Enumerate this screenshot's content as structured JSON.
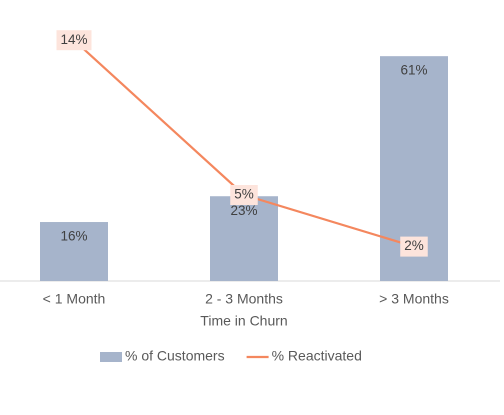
{
  "chart_data": {
    "type": "bar-line",
    "categories": [
      "< 1 Month",
      "2 - 3 Months",
      "> 3 Months"
    ],
    "x_label": "Time in Churn",
    "series": [
      {
        "name": "% of Customers",
        "type": "bar",
        "color": "#a6b4cb",
        "values": [
          16,
          23,
          61
        ],
        "value_labels": [
          "16%",
          "23%",
          "61%"
        ]
      },
      {
        "name": "% Reactivated",
        "type": "line",
        "axis": "y2",
        "color": "#f4875e",
        "values": [
          14,
          5,
          2
        ],
        "value_labels": [
          "14%",
          "5%",
          "2%"
        ]
      }
    ],
    "ylim": [
      0,
      70
    ],
    "y2lim": [
      0,
      15
    ],
    "grid": false,
    "legend": "bottom"
  }
}
